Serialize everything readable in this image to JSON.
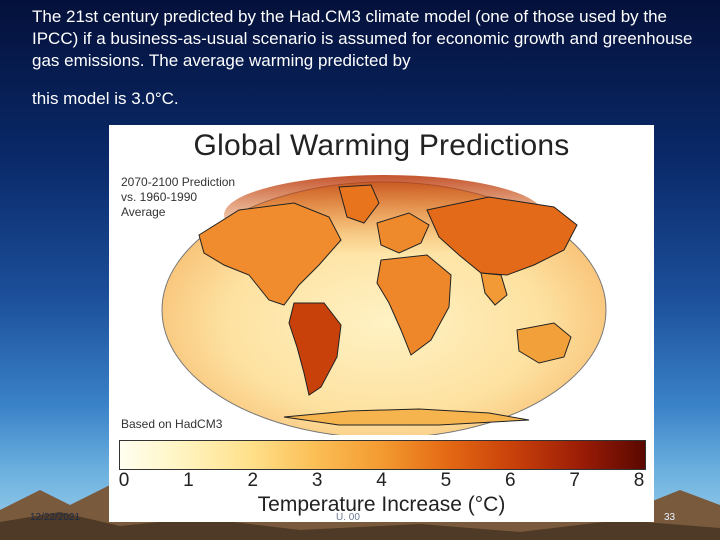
{
  "slide": {
    "paragraph1": "The 21st century predicted by the Had.CM3 climate model (one of those used by the IPCC) if a business-as-usual scenario is assumed for economic growth and greenhouse gas emissions. The average warming predicted by",
    "paragraph2": "this model is 3.0°C."
  },
  "figure": {
    "title": "Global Warming Predictions",
    "note_line1": "2070-2100 Prediction",
    "note_line2": "vs. 1960-1990",
    "note_line3": "Average",
    "basis": "Based on HadCM3",
    "colorbar_ticks": [
      "0",
      "1",
      "2",
      "3",
      "4",
      "5",
      "6",
      "7",
      "8"
    ],
    "colorbar_label": "Temperature Increase (°C)",
    "colors": {
      "low": "#fffef0",
      "mid": "#f39a30",
      "high": "#5a0800"
    }
  },
  "footer": {
    "date": "12/22/2021",
    "center": "U. 00",
    "page": "33"
  }
}
